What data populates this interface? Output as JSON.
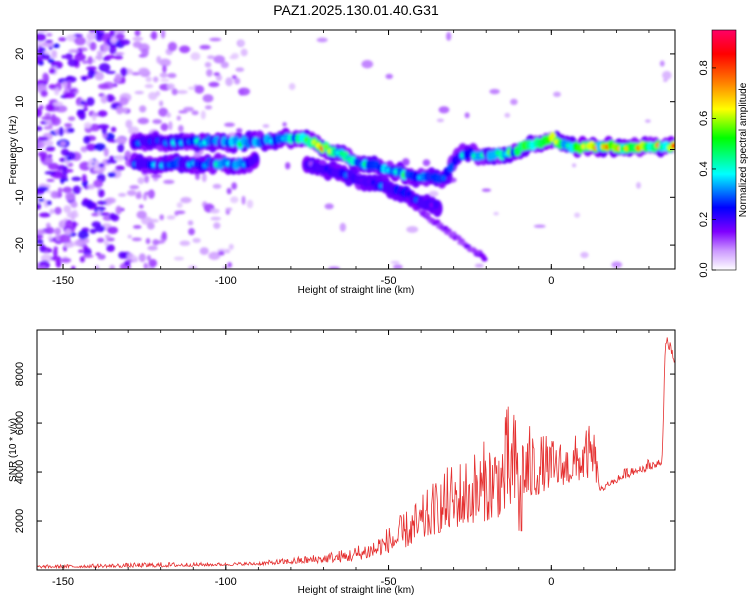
{
  "title": "PAZ1.2025.130.01.40.G31",
  "chart_data": [
    {
      "type": "heatmap",
      "xlabel": "Height of straight line (km)",
      "ylabel": "Frequency (Hz)",
      "xlim": [
        -158,
        38
      ],
      "ylim": [
        -25,
        25
      ],
      "xticks": [
        -150,
        -100,
        -50,
        0
      ],
      "yticks": [
        -20,
        -10,
        0,
        10,
        20
      ],
      "colorbar": {
        "label": "Normalized spectral amplitude",
        "range": [
          0,
          0.95
        ],
        "ticks": [
          0.0,
          0.2,
          0.4,
          0.6,
          0.8
        ],
        "colors": [
          "#ffffff",
          "#cc99ff",
          "#7f00ff",
          "#0000ff",
          "#00ffff",
          "#00ff00",
          "#ffff00",
          "#ff8000",
          "#ff0000",
          "#ff0066"
        ]
      },
      "ridges": [
        {
          "x": [
            -128,
            -110,
            -95,
            -85,
            -78,
            -72,
            -65,
            -58,
            -50,
            -43,
            -38,
            -33,
            -28,
            -22,
            -15,
            -8,
            -3,
            0,
            5,
            12,
            20,
            30,
            38
          ],
          "y": [
            1.5,
            1.5,
            1.5,
            2,
            2.5,
            1,
            -1,
            -3,
            -4,
            -5.5,
            -6,
            -6,
            -1,
            -1,
            -1,
            0.5,
            1.5,
            2.5,
            0.5,
            0.5,
            0.5,
            0.5,
            0.5
          ],
          "peak": [
            0.35,
            0.4,
            0.5,
            0.55,
            0.6,
            0.8,
            0.6,
            0.5,
            0.55,
            0.55,
            0.5,
            0.4,
            0.4,
            0.45,
            0.55,
            0.7,
            0.8,
            0.85,
            0.75,
            0.8,
            0.8,
            0.85,
            0.9
          ]
        },
        {
          "x": [
            -128,
            -115,
            -105,
            -95,
            -90
          ],
          "y": [
            -3,
            -3,
            -3,
            -3,
            -2
          ],
          "peak": [
            0.4,
            0.4,
            0.45,
            0.45,
            0.3
          ]
        },
        {
          "x": [
            -75,
            -65,
            -55,
            -45,
            -40,
            -35
          ],
          "y": [
            -3,
            -5,
            -7,
            -9,
            -11,
            -12
          ],
          "peak": [
            0.2,
            0.3,
            0.3,
            0.35,
            0.3,
            0.25
          ]
        }
      ]
    },
    {
      "type": "line",
      "xlabel": "Height of straight line (km)",
      "ylabel": "SNR (10 * v/v)",
      "xlim": [
        -158,
        38
      ],
      "ylim": [
        0,
        9800
      ],
      "xticks": [
        -150,
        -100,
        -50,
        0
      ],
      "yticks": [
        2000,
        4000,
        6000,
        8000
      ],
      "color": "#e53030",
      "envelope": {
        "x": [
          -158,
          -140,
          -120,
          -100,
          -90,
          -80,
          -70,
          -62,
          -55,
          -50,
          -45,
          -40,
          -35,
          -30,
          -25,
          -20,
          -15,
          -13,
          -10,
          -5,
          0,
          5,
          10,
          13,
          15,
          20,
          25,
          30,
          34,
          35,
          36,
          38
        ],
        "base": [
          80,
          100,
          120,
          180,
          200,
          250,
          300,
          350,
          500,
          700,
          900,
          1200,
          1500,
          1700,
          1900,
          2000,
          2200,
          2400,
          2600,
          3000,
          3400,
          3500,
          3700,
          3800,
          3200,
          3600,
          3900,
          4100,
          4300,
          7800,
          9000,
          8300
        ],
        "top": [
          200,
          250,
          320,
          300,
          350,
          500,
          700,
          900,
          1300,
          1800,
          2400,
          3000,
          3800,
          4500,
          4800,
          5400,
          6000,
          7000,
          6200,
          5800,
          5400,
          5300,
          5800,
          6000,
          3400,
          3900,
          4400,
          4600,
          4600,
          9200,
          9700,
          9200
        ]
      }
    }
  ]
}
